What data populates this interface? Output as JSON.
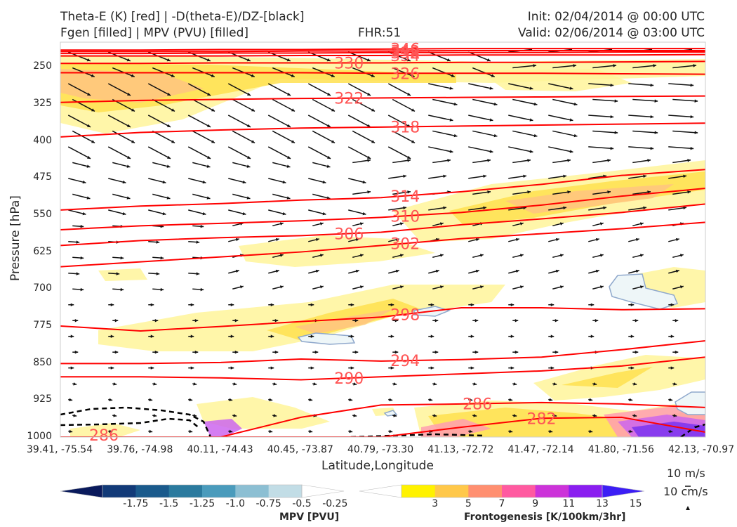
{
  "titles": {
    "left_line1": "Theta-E (K) [red] | -D(theta-E)/DZ-[black]",
    "left_line2": "Fgen [filled] | MPV (PVU) [filled]",
    "center": "FHR:51",
    "right_line1": "Init: 02/04/2014 @ 00:00 UTC",
    "right_line2": "Valid: 02/06/2014 @ 03:00 UTC"
  },
  "chart_data": {
    "type": "cross-section",
    "xlabel": "Latitude,Longitude",
    "ylabel": "Pressure [hPa]",
    "y_axis": {
      "scale": "pressure",
      "range": [
        1000,
        200
      ],
      "ticks": [
        250,
        325,
        400,
        475,
        550,
        625,
        700,
        775,
        850,
        925,
        1000
      ]
    },
    "x_ticks": [
      "39.41, -75.54",
      "39.76, -74.98",
      "40.11, -74.43",
      "40.45, -73.87",
      "40.79, -73.30",
      "41.13, -72.72",
      "41.47, -72.14",
      "41.80, -71.56",
      "42.13, -70.97"
    ],
    "theta_e_contours": [
      {
        "label": "346",
        "pressure": [
          216,
          216,
          215,
          215,
          214,
          213,
          213,
          213,
          213
        ]
      },
      {
        "label": "342",
        "pressure": [
          219,
          219,
          219,
          218,
          218,
          217,
          217,
          217,
          217
        ]
      },
      {
        "label": "338",
        "pressure": [
          223,
          223,
          222,
          222,
          221,
          221,
          221,
          220,
          220
        ]
      },
      {
        "label": "334",
        "pressure": [
          228,
          228,
          228,
          227,
          227,
          226,
          226,
          226,
          225
        ]
      },
      {
        "label": "330",
        "pressure": [
          243,
          243,
          242,
          242,
          242,
          241,
          241,
          240,
          239
        ]
      },
      {
        "label": "326",
        "pressure": [
          262,
          262,
          262,
          262,
          263,
          263,
          263,
          264,
          265
        ]
      },
      {
        "label": "322",
        "pressure": [
          322,
          318,
          316,
          314,
          313,
          312,
          311,
          310,
          309
        ]
      },
      {
        "label": "318",
        "pressure": [
          392,
          383,
          378,
          374,
          372,
          370,
          368,
          366,
          364
        ]
      },
      {
        "label": "314",
        "pressure": [
          540,
          532,
          527,
          520,
          515,
          503,
          488,
          470,
          458
        ]
      },
      {
        "label": "310",
        "pressure": [
          580,
          572,
          567,
          562,
          555,
          545,
          530,
          512,
          496
        ]
      },
      {
        "label": "306",
        "pressure": [
          612,
          602,
          596,
          592,
          585,
          570,
          558,
          545,
          528
        ]
      },
      {
        "label": "302",
        "pressure": [
          655,
          645,
          635,
          625,
          612,
          598,
          588,
          578,
          565
        ]
      },
      {
        "label": "298",
        "pressure": [
          775,
          785,
          776,
          766,
          757,
          738,
          738,
          742,
          740
        ]
      },
      {
        "label": "294",
        "pressure": [
          851,
          851,
          849,
          842,
          846,
          843,
          838,
          823,
          805
        ]
      },
      {
        "label": "290",
        "pressure": [
          878,
          878,
          880,
          884,
          878,
          872,
          866,
          856,
          838
        ]
      },
      {
        "label": "286",
        "pressure": [
          1000,
          1000,
          1000,
          960,
          935,
          933,
          930,
          933,
          940
        ]
      },
      {
        "label": "282",
        "pressure": [
          1000,
          1000,
          1000,
          1000,
          1000,
          980,
          962,
          960,
          990
        ]
      }
    ],
    "dashed_black_contour_label": "",
    "colorbars": [
      {
        "title": "MPV [PVU]",
        "ticks": [
          "-1.75",
          "-1.5",
          "-1.25",
          "-1.0",
          "-0.75",
          "-0.5",
          "-0.25"
        ],
        "colors": [
          "#0a1a5c",
          "#123a78",
          "#1a5a8c",
          "#2b7a9e",
          "#4a9bbc",
          "#8cbfd3",
          "#c2dde6",
          "#ffffff"
        ]
      },
      {
        "title": "Frontogenesis [K/100km/3hr]",
        "ticks": [
          "3",
          "5",
          "7",
          "9",
          "11",
          "13",
          "15"
        ],
        "colors": [
          "#ffffff",
          "#fff200",
          "#ffc84a",
          "#ff8f70",
          "#ff5aa0",
          "#cc33d9",
          "#8a1ef0",
          "#3c1ef5"
        ]
      }
    ],
    "quiver_key": {
      "label_1": "10 m/s",
      "label_2": "10 cm/s"
    },
    "colors": {
      "theta_e": "#ff0000",
      "contour_label": "#ff5555",
      "vectors": "#000000"
    }
  }
}
